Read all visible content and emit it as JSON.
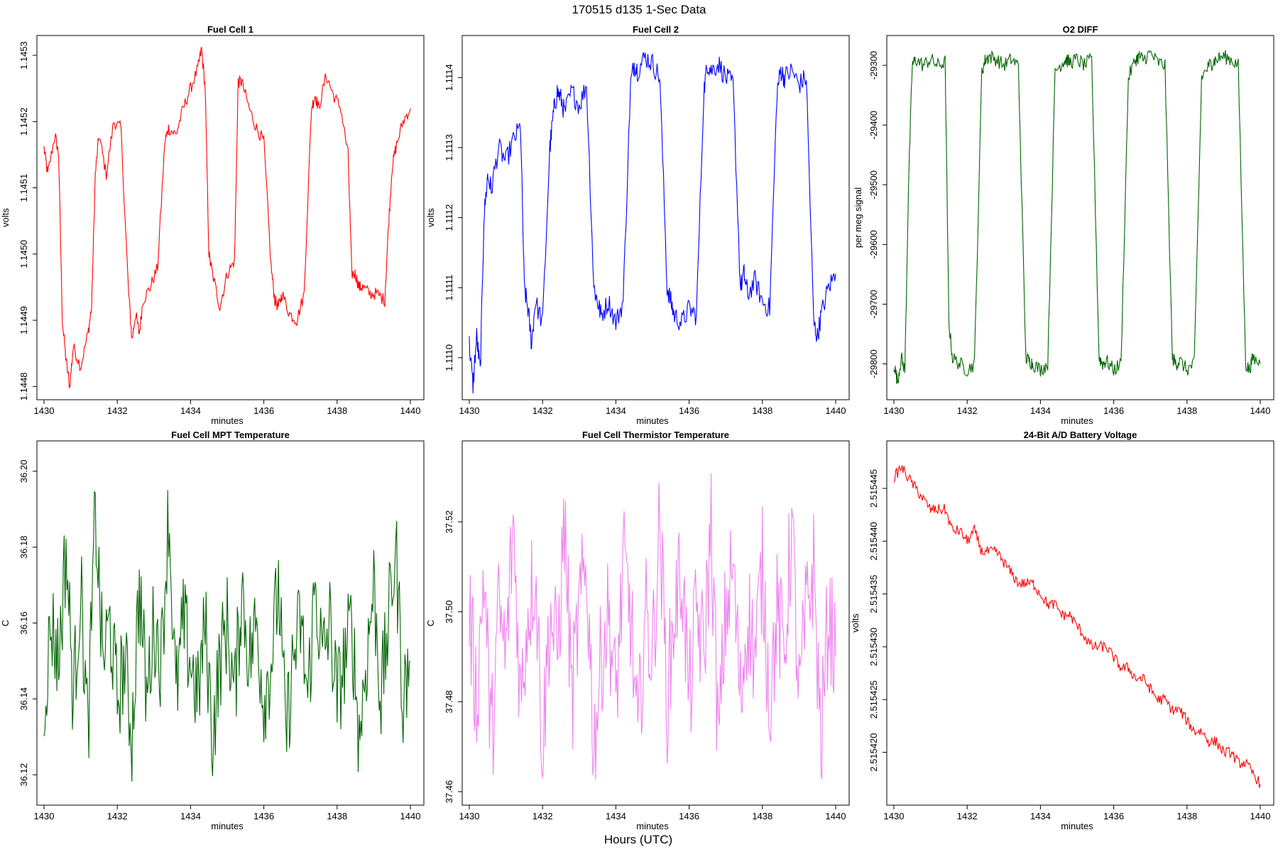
{
  "figure": {
    "title": "170515   d135   1-Sec Data",
    "xlabel_overall": "Hours (UTC)"
  },
  "chart_data": [
    {
      "type": "line",
      "title": "Fuel Cell 1",
      "xlabel": "minutes",
      "ylabel": "volts",
      "xlim": [
        1430,
        1440
      ],
      "ylim": [
        1.14478,
        1.14533
      ],
      "xticks": [
        "1430",
        "1432",
        "1434",
        "1436",
        "1438",
        "1440"
      ],
      "yticks": [
        "1.1448",
        "1.1449",
        "1.1450",
        "1.1451",
        "1.1452",
        "1.1453"
      ],
      "color": "#ff0000",
      "series": [
        {
          "name": "Fuel Cell 1",
          "x": [
            1430.0,
            1430.1,
            1430.3,
            1430.4,
            1430.5,
            1430.6,
            1430.7,
            1430.8,
            1431.0,
            1431.2,
            1431.3,
            1431.4,
            1431.5,
            1431.7,
            1431.9,
            1432.1,
            1432.3,
            1432.4,
            1432.5,
            1432.6,
            1432.7,
            1432.9,
            1433.1,
            1433.3,
            1433.4,
            1433.6,
            1433.8,
            1434.0,
            1434.2,
            1434.3,
            1434.4,
            1434.5,
            1434.6,
            1434.8,
            1435.0,
            1435.2,
            1435.3,
            1435.4,
            1435.6,
            1435.8,
            1436.0,
            1436.2,
            1436.3,
            1436.4,
            1436.5,
            1436.7,
            1436.9,
            1437.1,
            1437.3,
            1437.4,
            1437.5,
            1437.7,
            1437.9,
            1438.1,
            1438.3,
            1438.4,
            1438.5,
            1438.6,
            1438.7,
            1438.9,
            1439.1,
            1439.3,
            1439.4,
            1439.5,
            1439.6,
            1439.8,
            1440.0
          ],
          "values": [
            1.14516,
            1.14512,
            1.14518,
            1.14515,
            1.1449,
            1.14484,
            1.1448,
            1.14486,
            1.14483,
            1.14488,
            1.14492,
            1.14512,
            1.14518,
            1.14512,
            1.1452,
            1.14519,
            1.14495,
            1.14487,
            1.14491,
            1.14488,
            1.14493,
            1.14495,
            1.14498,
            1.14517,
            1.14519,
            1.14518,
            1.14522,
            1.14525,
            1.14528,
            1.14531,
            1.14525,
            1.145,
            1.14497,
            1.14492,
            1.14497,
            1.14499,
            1.14526,
            1.14526,
            1.14522,
            1.14519,
            1.14517,
            1.14498,
            1.14493,
            1.14492,
            1.14494,
            1.14491,
            1.1449,
            1.14494,
            1.14522,
            1.14524,
            1.14522,
            1.14527,
            1.14524,
            1.14522,
            1.14515,
            1.14497,
            1.14497,
            1.14495,
            1.14495,
            1.14494,
            1.14494,
            1.14493,
            1.14504,
            1.14513,
            1.14516,
            1.1452,
            1.14522
          ]
        }
      ]
    },
    {
      "type": "line",
      "title": "Fuel Cell 2",
      "xlabel": "minutes",
      "ylabel": "volts",
      "xlim": [
        1430,
        1440
      ],
      "ylim": [
        1.11094,
        1.11146
      ],
      "xticks": [
        "1430",
        "1432",
        "1434",
        "1436",
        "1438",
        "1440"
      ],
      "yticks": [
        "1.1110",
        "1.1111",
        "1.1112",
        "1.1113",
        "1.1114"
      ],
      "color": "#0000ff",
      "series": [
        {
          "name": "Fuel Cell 2",
          "x": [
            1430.0,
            1430.1,
            1430.2,
            1430.3,
            1430.4,
            1430.5,
            1430.6,
            1430.8,
            1431.0,
            1431.2,
            1431.4,
            1431.5,
            1431.6,
            1431.7,
            1431.8,
            1432.0,
            1432.2,
            1432.3,
            1432.4,
            1432.5,
            1432.6,
            1432.8,
            1433.0,
            1433.2,
            1433.4,
            1433.5,
            1433.6,
            1433.8,
            1434.0,
            1434.2,
            1434.4,
            1434.5,
            1434.6,
            1434.8,
            1435.0,
            1435.2,
            1435.4,
            1435.5,
            1435.6,
            1435.8,
            1436.0,
            1436.2,
            1436.4,
            1436.5,
            1436.6,
            1436.8,
            1437.0,
            1437.2,
            1437.4,
            1437.5,
            1437.6,
            1437.8,
            1438.0,
            1438.2,
            1438.4,
            1438.5,
            1438.6,
            1438.8,
            1439.0,
            1439.2,
            1439.4,
            1439.5,
            1439.6,
            1439.8,
            1440.0
          ],
          "values": [
            1.11102,
            1.11096,
            1.11103,
            1.11098,
            1.1112,
            1.11126,
            1.11124,
            1.1113,
            1.11128,
            1.11131,
            1.11133,
            1.1111,
            1.11107,
            1.11102,
            1.11108,
            1.11105,
            1.1113,
            1.11135,
            1.11138,
            1.11137,
            1.11135,
            1.11138,
            1.11136,
            1.11139,
            1.1111,
            1.11108,
            1.11106,
            1.11108,
            1.11105,
            1.11108,
            1.11139,
            1.11142,
            1.11141,
            1.11143,
            1.11142,
            1.1114,
            1.1111,
            1.11108,
            1.11106,
            1.11105,
            1.11107,
            1.11106,
            1.11138,
            1.11142,
            1.11141,
            1.11142,
            1.1114,
            1.11139,
            1.1111,
            1.11112,
            1.11109,
            1.11111,
            1.11108,
            1.11107,
            1.11138,
            1.11141,
            1.1114,
            1.11141,
            1.11139,
            1.1114,
            1.11105,
            1.11103,
            1.11106,
            1.1111,
            1.11112
          ]
        }
      ]
    },
    {
      "type": "line",
      "title": "O2 DIFF",
      "xlabel": "minutes",
      "ylabel": "per meg signal",
      "xlim": [
        1430,
        1440
      ],
      "ylim": [
        -29860,
        -29250
      ],
      "xticks": [
        "1430",
        "1432",
        "1434",
        "1436",
        "1438",
        "1440"
      ],
      "yticks": [
        "-29800",
        "-29700",
        "-29600",
        "-29500",
        "-29400",
        "-29300"
      ],
      "color": "#006400",
      "series": [
        {
          "name": "O2 DIFF",
          "x": [
            1430.0,
            1430.1,
            1430.2,
            1430.3,
            1430.4,
            1430.5,
            1430.6,
            1430.8,
            1431.0,
            1431.2,
            1431.4,
            1431.5,
            1431.6,
            1431.8,
            1432.0,
            1432.2,
            1432.4,
            1432.5,
            1432.6,
            1432.8,
            1433.0,
            1433.2,
            1433.4,
            1433.6,
            1433.7,
            1433.8,
            1434.0,
            1434.2,
            1434.4,
            1434.6,
            1434.7,
            1434.8,
            1435.0,
            1435.2,
            1435.4,
            1435.6,
            1435.7,
            1435.8,
            1436.0,
            1436.2,
            1436.4,
            1436.6,
            1436.7,
            1436.8,
            1437.0,
            1437.2,
            1437.4,
            1437.6,
            1437.7,
            1437.8,
            1438.0,
            1438.2,
            1438.4,
            1438.6,
            1438.7,
            1438.8,
            1439.0,
            1439.2,
            1439.4,
            1439.6,
            1439.7,
            1439.8,
            1440.0
          ],
          "values": [
            -29800,
            -29830,
            -29790,
            -29810,
            -29500,
            -29300,
            -29290,
            -29300,
            -29290,
            -29300,
            -29295,
            -29730,
            -29790,
            -29800,
            -29810,
            -29800,
            -29310,
            -29290,
            -29285,
            -29290,
            -29300,
            -29290,
            -29300,
            -29790,
            -29795,
            -29800,
            -29810,
            -29800,
            -29310,
            -29295,
            -29290,
            -29295,
            -29290,
            -29300,
            -29290,
            -29790,
            -29800,
            -29795,
            -29810,
            -29800,
            -29320,
            -29290,
            -29285,
            -29290,
            -29280,
            -29295,
            -29300,
            -29790,
            -29800,
            -29795,
            -29810,
            -29800,
            -29320,
            -29300,
            -29295,
            -29290,
            -29285,
            -29290,
            -29300,
            -29800,
            -29810,
            -29790,
            -29800
          ]
        }
      ]
    },
    {
      "type": "line",
      "title": "Fuel Cell MPT Temperature",
      "xlabel": "minutes",
      "ylabel": "C",
      "xlim": [
        1430,
        1440
      ],
      "ylim": [
        36.112,
        36.208
      ],
      "xticks": [
        "1430",
        "1432",
        "1434",
        "1436",
        "1438",
        "1440"
      ],
      "yticks": [
        "36.12",
        "36.14",
        "36.16",
        "36.18",
        "36.20"
      ],
      "color": "#006400",
      "series": [
        {
          "name": "MPT Temperature",
          "x": [
            1430.0,
            1430.2,
            1430.4,
            1430.6,
            1430.8,
            1431.0,
            1431.2,
            1431.4,
            1431.6,
            1431.8,
            1432.0,
            1432.2,
            1432.4,
            1432.6,
            1432.8,
            1433.0,
            1433.2,
            1433.4,
            1433.6,
            1433.8,
            1434.0,
            1434.2,
            1434.4,
            1434.6,
            1434.8,
            1435.0,
            1435.2,
            1435.4,
            1435.6,
            1435.8,
            1436.0,
            1436.2,
            1436.4,
            1436.6,
            1436.8,
            1437.0,
            1437.2,
            1437.4,
            1437.6,
            1437.8,
            1438.0,
            1438.2,
            1438.4,
            1438.6,
            1438.8,
            1439.0,
            1439.2,
            1439.4,
            1439.6,
            1439.8,
            1440.0
          ],
          "values": [
            36.14,
            36.16,
            36.15,
            36.18,
            36.14,
            36.17,
            36.13,
            36.19,
            36.15,
            36.16,
            36.14,
            36.15,
            36.13,
            36.17,
            36.14,
            36.16,
            36.15,
            36.19,
            36.14,
            36.16,
            36.15,
            36.14,
            36.16,
            36.13,
            36.15,
            36.16,
            36.14,
            36.17,
            36.15,
            36.16,
            36.14,
            36.15,
            36.17,
            36.13,
            36.15,
            36.16,
            36.14,
            36.17,
            36.15,
            36.16,
            36.14,
            36.15,
            36.16,
            36.13,
            36.15,
            36.17,
            36.14,
            36.16,
            36.18,
            36.14,
            36.15
          ]
        }
      ]
    },
    {
      "type": "line",
      "title": "Fuel Cell Thermistor Temperature",
      "xlabel": "minutes",
      "ylabel": "C",
      "xlim": [
        1430,
        1440
      ],
      "ylim": [
        37.457,
        37.538
      ],
      "xticks": [
        "1430",
        "1432",
        "1434",
        "1436",
        "1438",
        "1440"
      ],
      "yticks": [
        "37.46",
        "37.48",
        "37.50",
        "37.52"
      ],
      "color": "#ee82ee",
      "series": [
        {
          "name": "Thermistor Temperature",
          "x": [
            1430.0,
            1430.2,
            1430.4,
            1430.6,
            1430.8,
            1431.0,
            1431.2,
            1431.4,
            1431.6,
            1431.8,
            1432.0,
            1432.2,
            1432.4,
            1432.6,
            1432.8,
            1433.0,
            1433.2,
            1433.4,
            1433.6,
            1433.8,
            1434.0,
            1434.2,
            1434.4,
            1434.6,
            1434.8,
            1435.0,
            1435.2,
            1435.4,
            1435.6,
            1435.8,
            1436.0,
            1436.2,
            1436.4,
            1436.6,
            1436.8,
            1437.0,
            1437.2,
            1437.4,
            1437.6,
            1437.8,
            1438.0,
            1438.2,
            1438.4,
            1438.6,
            1438.8,
            1439.0,
            1439.2,
            1439.4,
            1439.6,
            1439.8,
            1440.0
          ],
          "values": [
            37.5,
            37.48,
            37.51,
            37.47,
            37.5,
            37.49,
            37.52,
            37.48,
            37.5,
            37.51,
            37.47,
            37.5,
            37.49,
            37.52,
            37.48,
            37.5,
            37.51,
            37.47,
            37.49,
            37.5,
            37.48,
            37.51,
            37.5,
            37.47,
            37.5,
            37.49,
            37.52,
            37.48,
            37.5,
            37.51,
            37.48,
            37.5,
            37.49,
            37.52,
            37.47,
            37.5,
            37.51,
            37.48,
            37.5,
            37.49,
            37.51,
            37.48,
            37.5,
            37.49,
            37.52,
            37.48,
            37.5,
            37.51,
            37.47,
            37.5,
            37.49
          ]
        }
      ]
    },
    {
      "type": "line",
      "title": "24-Bit A/D Battery Voltage",
      "xlabel": "minutes",
      "ylabel": "volts",
      "xlim": [
        1430,
        1440
      ],
      "ylim": [
        2.515415,
        2.5154495
      ],
      "xticks": [
        "1430",
        "1432",
        "1434",
        "1436",
        "1438",
        "1440"
      ],
      "yticks": [
        "2.515420",
        "2.515425",
        "2.515430",
        "2.515435",
        "2.515440",
        "2.515445"
      ],
      "color": "#ff0000",
      "series": [
        {
          "name": "Battery Voltage",
          "x": [
            1430.0,
            1430.2,
            1430.4,
            1430.6,
            1430.8,
            1431.0,
            1431.2,
            1431.4,
            1431.6,
            1431.8,
            1432.0,
            1432.2,
            1432.4,
            1432.6,
            1432.8,
            1433.0,
            1433.2,
            1433.4,
            1433.6,
            1433.8,
            1434.0,
            1434.2,
            1434.4,
            1434.6,
            1434.8,
            1435.0,
            1435.2,
            1435.4,
            1435.6,
            1435.8,
            1436.0,
            1436.2,
            1436.4,
            1436.6,
            1436.8,
            1437.0,
            1437.2,
            1437.4,
            1437.6,
            1437.8,
            1438.0,
            1438.2,
            1438.4,
            1438.6,
            1438.8,
            1439.0,
            1439.2,
            1439.4,
            1439.6,
            1439.8,
            1440.0
          ],
          "values": [
            2.515446,
            2.515447,
            2.515446,
            2.515445,
            2.515444,
            2.515443,
            2.515443,
            2.515443,
            2.515441,
            2.515441,
            2.51544,
            2.515441,
            2.515439,
            2.515439,
            2.515439,
            2.515438,
            2.515437,
            2.515436,
            2.515436,
            2.515436,
            2.515435,
            2.515434,
            2.515434,
            2.515433,
            2.515433,
            2.515432,
            2.515431,
            2.51543,
            2.51543,
            2.51543,
            2.515429,
            2.515428,
            2.515428,
            2.515427,
            2.515427,
            2.515426,
            2.515425,
            2.515425,
            2.515424,
            2.515424,
            2.515423,
            2.515422,
            2.515422,
            2.515421,
            2.515421,
            2.51542,
            2.51542,
            2.515419,
            2.515419,
            2.515418,
            2.515417
          ]
        }
      ]
    }
  ]
}
